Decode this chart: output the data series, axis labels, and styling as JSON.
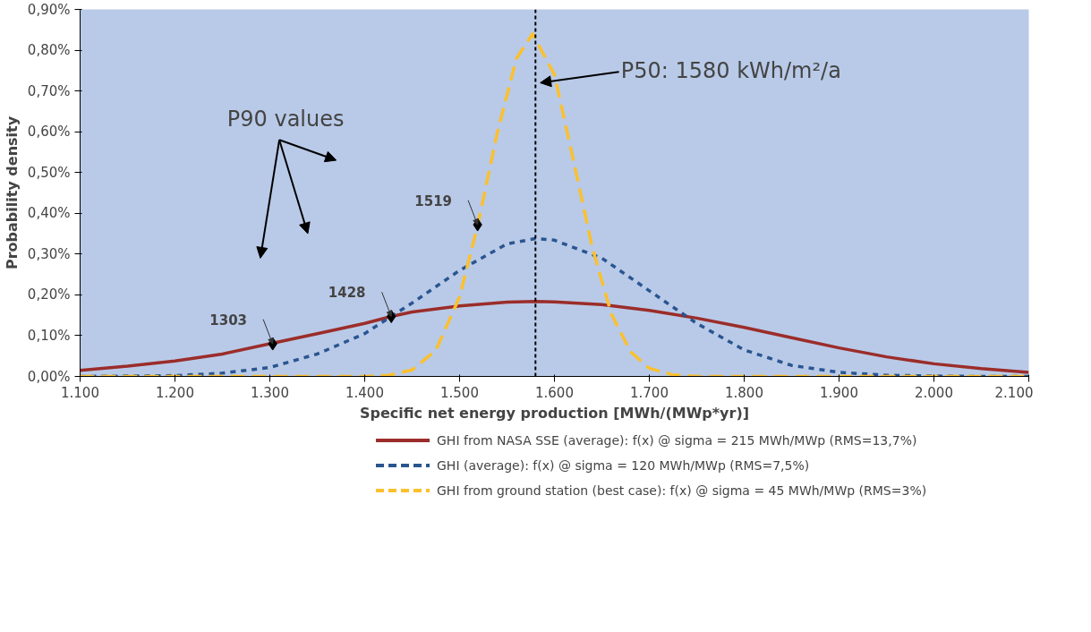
{
  "chart_data": {
    "type": "line",
    "xlabel": "Specific net energy production [MWh/(MWp*yr)]",
    "ylabel": "Probability density",
    "xlim": [
      1100,
      2100
    ],
    "xticks": [
      {
        "value": 1100,
        "label": "1.100"
      },
      {
        "value": 1200,
        "label": "1.200"
      },
      {
        "value": 1300,
        "label": "1.300"
      },
      {
        "value": 1400,
        "label": "1.400"
      },
      {
        "value": 1500,
        "label": "1.500"
      },
      {
        "value": 1600,
        "label": "1.600"
      },
      {
        "value": 1700,
        "label": "1.700"
      },
      {
        "value": 1800,
        "label": "1.800"
      },
      {
        "value": 1900,
        "label": "1.900"
      },
      {
        "value": 2000,
        "label": "2.000"
      },
      {
        "value": 2100,
        "label": "2.100"
      }
    ],
    "ylim": [
      0,
      0.9
    ],
    "yticks": [
      {
        "value": 0,
        "label": "0,00%"
      },
      {
        "value": 0.1,
        "label": "0,10%"
      },
      {
        "value": 0.2,
        "label": "0,20%"
      },
      {
        "value": 0.3,
        "label": "0,30%"
      },
      {
        "value": 0.4,
        "label": "0,40%"
      },
      {
        "value": 0.5,
        "label": "0,50%"
      },
      {
        "value": 0.6,
        "label": "0,60%"
      },
      {
        "value": 0.7,
        "label": "0,70%"
      },
      {
        "value": 0.8,
        "label": "0,80%"
      },
      {
        "value": 0.9,
        "label": "0,90%"
      }
    ],
    "grid": false,
    "legend": "bottom",
    "series": [
      {
        "name": "GHI from NASA SSE (average): f(x) @ sigma = 215 MWh/MWp (RMS=13,7%)",
        "color": "#9b2d2a",
        "line_style": "solid",
        "x": [
          1100,
          1150,
          1200,
          1250,
          1300,
          1350,
          1400,
          1428,
          1450,
          1500,
          1550,
          1580,
          1600,
          1650,
          1700,
          1750,
          1800,
          1850,
          1900,
          1950,
          2000,
          2050,
          2100
        ],
        "values": [
          0.015,
          0.025,
          0.038,
          0.055,
          0.08,
          0.105,
          0.13,
          0.147,
          0.158,
          0.173,
          0.182,
          0.184,
          0.183,
          0.176,
          0.162,
          0.143,
          0.12,
          0.095,
          0.07,
          0.048,
          0.031,
          0.019,
          0.01
        ]
      },
      {
        "name": "GHI (average): f(x) @ sigma = 120 MWh/MWp (RMS=7,5%)",
        "color": "#2a5590",
        "line_style": "dashed",
        "x": [
          1100,
          1150,
          1200,
          1250,
          1300,
          1350,
          1400,
          1428,
          1450,
          1500,
          1550,
          1580,
          1600,
          1650,
          1700,
          1750,
          1800,
          1850,
          1900,
          1950,
          2000,
          2050,
          2100
        ],
        "values": [
          0,
          0.001,
          0.002,
          0.008,
          0.022,
          0.055,
          0.105,
          0.147,
          0.18,
          0.26,
          0.325,
          0.338,
          0.334,
          0.29,
          0.21,
          0.13,
          0.065,
          0.027,
          0.01,
          0.003,
          0.001,
          0,
          0
        ]
      },
      {
        "name": "GHI from ground station (best case): f(x) @ sigma = 45 MWh/MWp (RMS=3%)",
        "color": "#fbc02d",
        "line_style": "dashed",
        "x": [
          1100,
          1200,
          1300,
          1400,
          1425,
          1450,
          1475,
          1500,
          1519,
          1540,
          1560,
          1577,
          1600,
          1620,
          1640,
          1660,
          1680,
          1700,
          1725,
          1750,
          1800,
          1900,
          2000,
          2100
        ],
        "values": [
          0,
          0,
          0,
          0,
          0.003,
          0.016,
          0.064,
          0.195,
          0.37,
          0.6,
          0.78,
          0.84,
          0.74,
          0.53,
          0.315,
          0.153,
          0.061,
          0.02,
          0.004,
          0,
          0,
          0,
          0,
          0
        ]
      },
      {
        "type": "scatter",
        "marker": "diamond",
        "color": "#000000",
        "x": [
          1303,
          1428,
          1519
        ],
        "values": [
          0.08,
          0.147,
          0.372
        ]
      }
    ],
    "ref_lines": [
      {
        "axis": "x",
        "value": 1580,
        "label": "P50: 1580 kWh/m²/a",
        "color": "#000000",
        "line_style": "dashed"
      }
    ],
    "annotations": [
      "P90 values",
      {
        "text": "1303",
        "x": 1303,
        "y": 0.08
      },
      {
        "text": "1428",
        "x": 1428,
        "y": 0.147
      },
      {
        "text": "1519",
        "x": 1519,
        "y": 0.372
      }
    ]
  }
}
